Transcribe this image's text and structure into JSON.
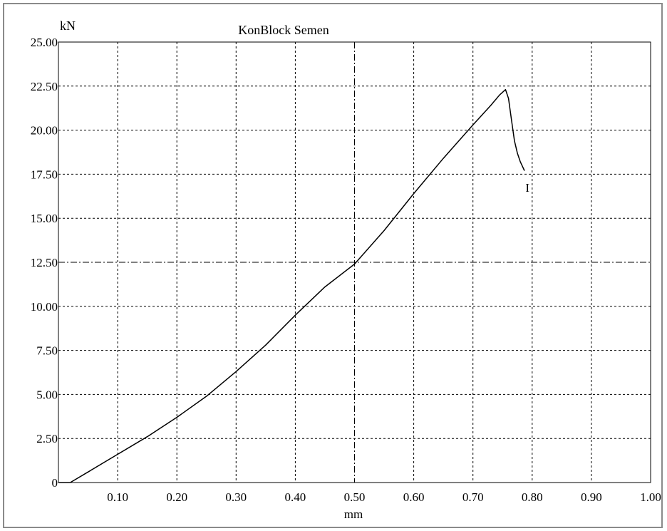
{
  "chart_data": {
    "type": "line",
    "title": "KonBlock Semen",
    "ylabel": "kN",
    "xlabel": "mm",
    "xlim": [
      0,
      1.0
    ],
    "ylim": [
      0,
      25.0
    ],
    "x_ticks": [
      "0.10",
      "0.20",
      "0.30",
      "0.40",
      "0.50",
      "0.60",
      "0.70",
      "0.80",
      "0.90",
      "1.00"
    ],
    "y_ticks": [
      "0",
      "2.50",
      "5.00",
      "7.50",
      "10.00",
      "12.50",
      "15.00",
      "17.50",
      "20.00",
      "22.50",
      "25.00"
    ],
    "grid": true,
    "series": [
      {
        "x": [
          0,
          0.02,
          0.05,
          0.1,
          0.15,
          0.2,
          0.25,
          0.3,
          0.35,
          0.4,
          0.45,
          0.5,
          0.55,
          0.6,
          0.65,
          0.7,
          0.73,
          0.745,
          0.755,
          0.76,
          0.765,
          0.77,
          0.775,
          0.78,
          0.787
        ],
        "y": [
          0,
          0,
          0.6,
          1.6,
          2.6,
          3.7,
          4.9,
          6.3,
          7.8,
          9.5,
          11.1,
          12.4,
          14.3,
          16.4,
          18.4,
          20.3,
          21.4,
          22.0,
          22.3,
          21.8,
          20.6,
          19.4,
          18.7,
          18.2,
          17.7
        ]
      }
    ],
    "annotations": [
      {
        "text": "I",
        "x": 0.792,
        "y": 16.5
      }
    ],
    "colors": {
      "line": "#000000",
      "grid": "#000000",
      "frame": "#8a8a8a"
    }
  }
}
